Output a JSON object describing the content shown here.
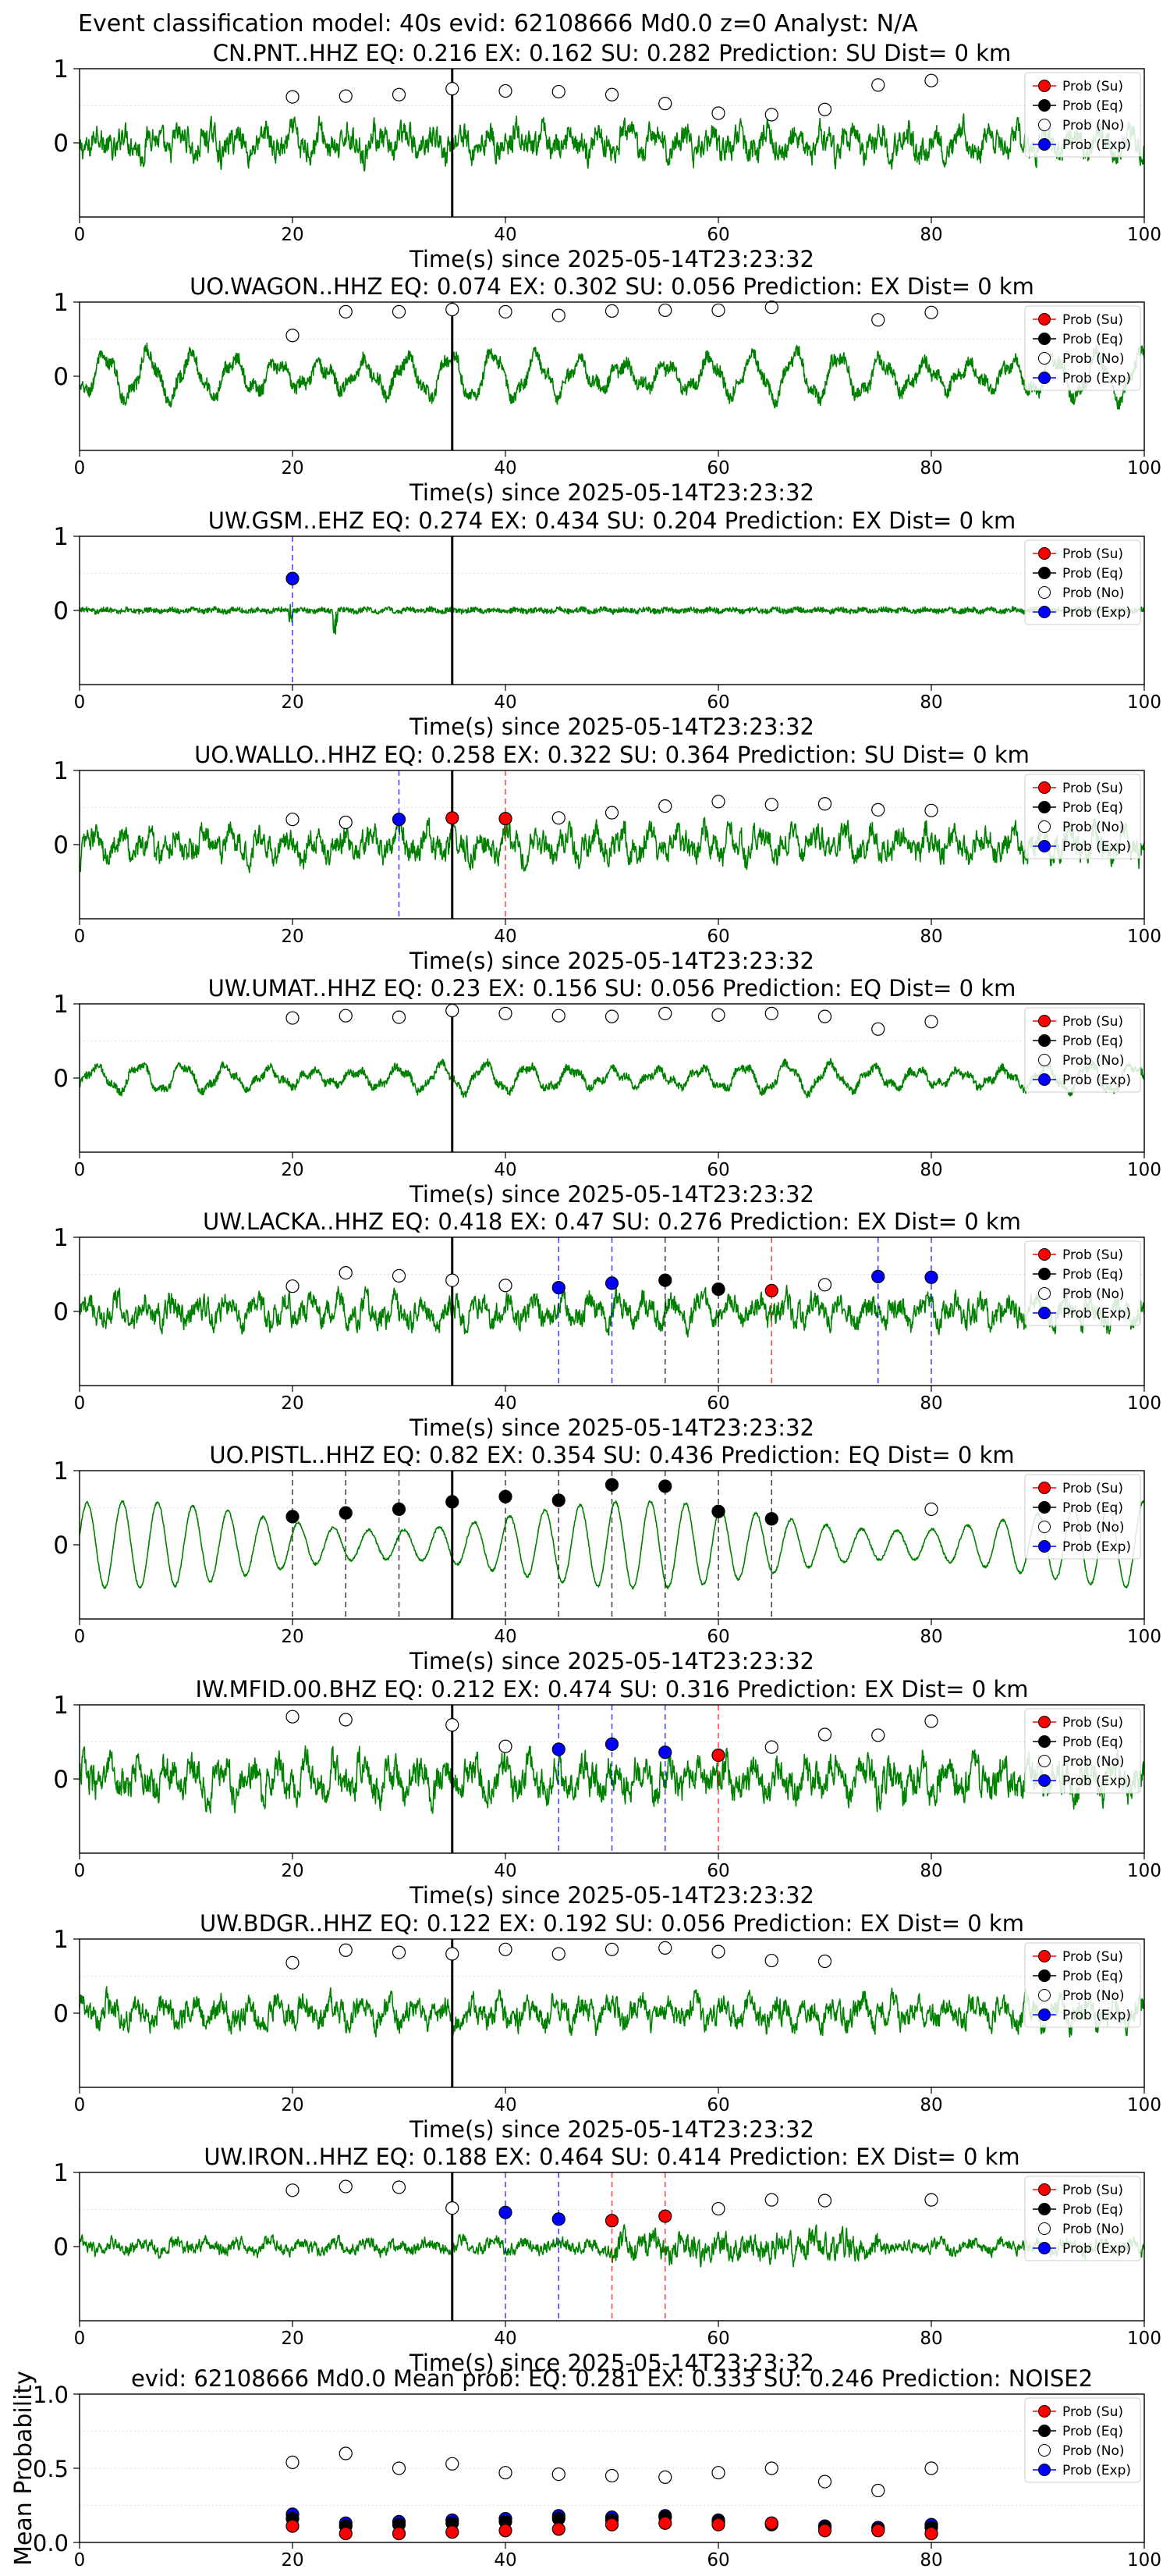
{
  "suptitle": "Event classification model: 40s evid: 62108666 Md0.0 z=0 Analyst: N/A",
  "colors": {
    "trace": "#008000",
    "su": "#ff0000",
    "eq": "#000000",
    "no": "#ffffff",
    "exp": "#0000ff",
    "origin_line": "#000000"
  },
  "legend": [
    "Prob (Su)",
    "Prob (Eq)",
    "Prob (No)",
    "Prob (Exp)"
  ],
  "chart_data": [
    {
      "type": "line",
      "station": "CN.PNT..HHZ",
      "title": "CN.PNT..HHZ   EQ: 0.216  EX: 0.162  SU: 0.282   Prediction: SU    Dist= 0 km",
      "xlabel": "Time(s) since 2025-05-14T23:23:32",
      "xlim": [
        0,
        100
      ],
      "ylim": [
        -1,
        1
      ],
      "xticks": [
        "0",
        "20",
        "40",
        "60",
        "80",
        "100"
      ],
      "yticks": [
        "0",
        "1"
      ],
      "origin_time": 35,
      "trace_style": "noisy",
      "trace_amp": 0.5,
      "no_points": [
        [
          20,
          0.62
        ],
        [
          25,
          0.63
        ],
        [
          30,
          0.65
        ],
        [
          35,
          0.73
        ],
        [
          40,
          0.7
        ],
        [
          45,
          0.69
        ],
        [
          50,
          0.65
        ],
        [
          55,
          0.53
        ],
        [
          60,
          0.4
        ],
        [
          65,
          0.38
        ],
        [
          70,
          0.45
        ],
        [
          75,
          0.78
        ],
        [
          80,
          0.84
        ]
      ],
      "class_points": []
    },
    {
      "type": "line",
      "station": "UO.WAGON..HHZ",
      "title": "UO.WAGON..HHZ   EQ: 0.074  EX: 0.302  SU: 0.056   Prediction: EX    Dist= 0 km",
      "xlabel": "Time(s) since 2025-05-14T23:23:32",
      "xlim": [
        0,
        100
      ],
      "ylim": [
        -1,
        1
      ],
      "xticks": [
        "0",
        "20",
        "40",
        "60",
        "80",
        "100"
      ],
      "yticks": [
        "0",
        "1"
      ],
      "origin_time": 35,
      "trace_style": "oscillating",
      "trace_amp": 0.5,
      "no_points": [
        [
          20,
          0.55
        ],
        [
          25,
          0.87
        ],
        [
          30,
          0.87
        ],
        [
          35,
          0.9
        ],
        [
          40,
          0.87
        ],
        [
          45,
          0.82
        ],
        [
          50,
          0.88
        ],
        [
          55,
          0.89
        ],
        [
          60,
          0.89
        ],
        [
          65,
          0.93
        ],
        [
          75,
          0.76
        ],
        [
          80,
          0.86
        ]
      ],
      "class_points": []
    },
    {
      "type": "line",
      "station": "UW.GSM..EHZ",
      "title": "UW.GSM..EHZ   EQ: 0.274  EX: 0.434  SU: 0.204   Prediction: EX    Dist= 0 km",
      "xlabel": "Time(s) since 2025-05-14T23:23:32",
      "xlim": [
        0,
        100
      ],
      "ylim": [
        -1,
        1
      ],
      "xticks": [
        "0",
        "20",
        "40",
        "60",
        "80",
        "100"
      ],
      "yticks": [
        "0",
        "1"
      ],
      "origin_time": 35,
      "trace_style": "quiet",
      "trace_amp": 0.08,
      "no_points": [],
      "class_points": [
        {
          "t": 20,
          "p": 0.43,
          "cls": "exp"
        }
      ]
    },
    {
      "type": "line",
      "station": "UO.WALLO..HHZ",
      "title": "UO.WALLO..HHZ   EQ: 0.258  EX: 0.322  SU: 0.364   Prediction: SU    Dist= 0 km",
      "xlabel": "Time(s) since 2025-05-14T23:23:32",
      "xlim": [
        0,
        100
      ],
      "ylim": [
        -1,
        1
      ],
      "xticks": [
        "0",
        "20",
        "40",
        "60",
        "80",
        "100"
      ],
      "yticks": [
        "0",
        "1"
      ],
      "origin_time": 35,
      "trace_style": "noisy",
      "trace_amp": 0.5,
      "no_points": [
        [
          20,
          0.34
        ],
        [
          25,
          0.3
        ],
        [
          45,
          0.36
        ],
        [
          50,
          0.43
        ],
        [
          55,
          0.52
        ],
        [
          60,
          0.58
        ],
        [
          65,
          0.54
        ],
        [
          70,
          0.55
        ],
        [
          75,
          0.47
        ],
        [
          80,
          0.46
        ]
      ],
      "class_points": [
        {
          "t": 30,
          "p": 0.34,
          "cls": "exp"
        },
        {
          "t": 35,
          "p": 0.36,
          "cls": "su"
        },
        {
          "t": 40,
          "p": 0.35,
          "cls": "su"
        }
      ]
    },
    {
      "type": "line",
      "station": "UW.UMAT..HHZ",
      "title": "UW.UMAT..HHZ   EQ: 0.23  EX: 0.156  SU: 0.056   Prediction: EQ    Dist= 0 km",
      "xlabel": "Time(s) since 2025-05-14T23:23:32",
      "xlim": [
        0,
        100
      ],
      "ylim": [
        -1,
        1
      ],
      "xticks": [
        "0",
        "20",
        "40",
        "60",
        "80",
        "100"
      ],
      "yticks": [
        "0",
        "1"
      ],
      "origin_time": 35,
      "trace_style": "oscillating",
      "trace_amp": 0.3,
      "no_points": [
        [
          20,
          0.81
        ],
        [
          25,
          0.84
        ],
        [
          30,
          0.82
        ],
        [
          35,
          0.91
        ],
        [
          40,
          0.87
        ],
        [
          45,
          0.84
        ],
        [
          50,
          0.83
        ],
        [
          55,
          0.87
        ],
        [
          60,
          0.85
        ],
        [
          65,
          0.87
        ],
        [
          70,
          0.83
        ],
        [
          75,
          0.66
        ],
        [
          80,
          0.76
        ]
      ],
      "class_points": []
    },
    {
      "type": "line",
      "station": "UW.LACKA..HHZ",
      "title": "UW.LACKA..HHZ   EQ: 0.418  EX: 0.47  SU: 0.276   Prediction: EX    Dist= 0 km",
      "xlabel": "Time(s) since 2025-05-14T23:23:32",
      "xlim": [
        0,
        100
      ],
      "ylim": [
        -1,
        1
      ],
      "xticks": [
        "0",
        "20",
        "40",
        "60",
        "80",
        "100"
      ],
      "yticks": [
        "0",
        "1"
      ],
      "origin_time": 35,
      "trace_style": "noisy",
      "trace_amp": 0.45,
      "no_points": [
        [
          20,
          0.34
        ],
        [
          25,
          0.52
        ],
        [
          30,
          0.48
        ],
        [
          35,
          0.42
        ],
        [
          40,
          0.35
        ],
        [
          70,
          0.36
        ]
      ],
      "class_points": [
        {
          "t": 45,
          "p": 0.32,
          "cls": "exp"
        },
        {
          "t": 50,
          "p": 0.38,
          "cls": "exp"
        },
        {
          "t": 55,
          "p": 0.42,
          "cls": "eq"
        },
        {
          "t": 60,
          "p": 0.3,
          "cls": "eq"
        },
        {
          "t": 65,
          "p": 0.28,
          "cls": "su"
        },
        {
          "t": 75,
          "p": 0.47,
          "cls": "exp"
        },
        {
          "t": 80,
          "p": 0.46,
          "cls": "exp"
        }
      ]
    },
    {
      "type": "line",
      "station": "UO.PISTL..HHZ",
      "title": "UO.PISTL..HHZ   EQ: 0.82  EX: 0.354  SU: 0.436   Prediction: EQ    Dist= 0 km",
      "xlabel": "Time(s) since 2025-05-14T23:23:32",
      "xlim": [
        0,
        100
      ],
      "ylim": [
        -1,
        1
      ],
      "xticks": [
        "0",
        "20",
        "40",
        "60",
        "80",
        "100"
      ],
      "yticks": [
        "0",
        "1"
      ],
      "origin_time": 35,
      "trace_style": "smooth",
      "trace_amp": 0.7,
      "no_points": [
        [
          80,
          0.48
        ]
      ],
      "class_points": [
        {
          "t": 20,
          "p": 0.38,
          "cls": "eq"
        },
        {
          "t": 25,
          "p": 0.43,
          "cls": "eq"
        },
        {
          "t": 30,
          "p": 0.48,
          "cls": "eq"
        },
        {
          "t": 35,
          "p": 0.58,
          "cls": "eq"
        },
        {
          "t": 40,
          "p": 0.65,
          "cls": "eq"
        },
        {
          "t": 45,
          "p": 0.6,
          "cls": "eq"
        },
        {
          "t": 50,
          "p": 0.81,
          "cls": "eq"
        },
        {
          "t": 55,
          "p": 0.79,
          "cls": "eq"
        },
        {
          "t": 60,
          "p": 0.45,
          "cls": "eq"
        },
        {
          "t": 65,
          "p": 0.35,
          "cls": "eq"
        }
      ]
    },
    {
      "type": "line",
      "station": "IW.MFID.00.BHZ",
      "title": "IW.MFID.00.BHZ   EQ: 0.212  EX: 0.474  SU: 0.316   Prediction: EX    Dist= 0 km",
      "xlabel": "Time(s) since 2025-05-14T23:23:32",
      "xlim": [
        0,
        100
      ],
      "ylim": [
        -1,
        1
      ],
      "xticks": [
        "0",
        "20",
        "40",
        "60",
        "80",
        "100"
      ],
      "yticks": [
        "0",
        "1"
      ],
      "origin_time": 35,
      "trace_style": "noisy",
      "trace_amp": 0.6,
      "no_points": [
        [
          20,
          0.84
        ],
        [
          25,
          0.8
        ],
        [
          35,
          0.73
        ],
        [
          40,
          0.44
        ],
        [
          65,
          0.43
        ],
        [
          70,
          0.6
        ],
        [
          75,
          0.59
        ],
        [
          80,
          0.78
        ]
      ],
      "class_points": [
        {
          "t": 45,
          "p": 0.4,
          "cls": "exp"
        },
        {
          "t": 50,
          "p": 0.47,
          "cls": "exp"
        },
        {
          "t": 55,
          "p": 0.36,
          "cls": "exp"
        },
        {
          "t": 60,
          "p": 0.32,
          "cls": "su"
        }
      ]
    },
    {
      "type": "line",
      "station": "UW.BDGR..HHZ",
      "title": "UW.BDGR..HHZ   EQ: 0.122  EX: 0.192  SU: 0.056   Prediction: EX    Dist= 0 km",
      "xlabel": "Time(s) since 2025-05-14T23:23:32",
      "xlim": [
        0,
        100
      ],
      "ylim": [
        -1,
        1
      ],
      "xticks": [
        "0",
        "20",
        "40",
        "60",
        "80",
        "100"
      ],
      "yticks": [
        "0",
        "1"
      ],
      "origin_time": 35,
      "trace_style": "noisy",
      "trace_amp": 0.45,
      "no_points": [
        [
          20,
          0.68
        ],
        [
          25,
          0.85
        ],
        [
          30,
          0.82
        ],
        [
          35,
          0.8
        ],
        [
          40,
          0.86
        ],
        [
          45,
          0.8
        ],
        [
          50,
          0.86
        ],
        [
          55,
          0.88
        ],
        [
          60,
          0.83
        ],
        [
          65,
          0.71
        ],
        [
          70,
          0.7
        ]
      ],
      "class_points": []
    },
    {
      "type": "line",
      "station": "UW.IRON..HHZ",
      "title": "UW.IRON..HHZ   EQ: 0.188  EX: 0.464  SU: 0.414   Prediction: EX    Dist= 0 km",
      "xlabel": "Time(s) since 2025-05-14T23:23:32",
      "xlim": [
        0,
        100
      ],
      "ylim": [
        -1,
        1
      ],
      "xticks": [
        "0",
        "20",
        "40",
        "60",
        "80",
        "100"
      ],
      "yticks": [
        "0",
        "1"
      ],
      "origin_time": 35,
      "trace_style": "mixed",
      "trace_amp": 0.3,
      "no_points": [
        [
          20,
          0.76
        ],
        [
          25,
          0.81
        ],
        [
          30,
          0.8
        ],
        [
          35,
          0.52
        ],
        [
          60,
          0.51
        ],
        [
          65,
          0.63
        ],
        [
          70,
          0.62
        ],
        [
          80,
          0.63
        ]
      ],
      "class_points": [
        {
          "t": 40,
          "p": 0.46,
          "cls": "exp"
        },
        {
          "t": 45,
          "p": 0.37,
          "cls": "exp"
        },
        {
          "t": 50,
          "p": 0.35,
          "cls": "su"
        },
        {
          "t": 55,
          "p": 0.41,
          "cls": "su"
        }
      ]
    },
    {
      "type": "scatter",
      "station": "mean",
      "title": "evid: 62108666  Md0.0   Mean prob:   EQ: 0.281  EX: 0.333  SU: 0.246   Prediction: NOISE2",
      "xlabel": "",
      "ylabel": "Mean Probability",
      "xlim": [
        0,
        100
      ],
      "ylim": [
        0,
        1
      ],
      "xticks": [
        "0",
        "20",
        "40",
        "60",
        "80",
        "100"
      ],
      "yticks": [
        "0.0",
        "0.5",
        "1.0"
      ],
      "x": [
        20,
        25,
        30,
        35,
        40,
        45,
        50,
        55,
        60,
        65,
        70,
        75,
        80
      ],
      "series": [
        {
          "name": "Prob (No)",
          "cls": "no",
          "values": [
            0.54,
            0.6,
            0.5,
            0.53,
            0.47,
            0.46,
            0.45,
            0.44,
            0.47,
            0.5,
            0.41,
            0.35,
            0.5
          ]
        },
        {
          "name": "Prob (Exp)",
          "cls": "exp",
          "values": [
            0.19,
            0.13,
            0.14,
            0.15,
            0.16,
            0.18,
            0.17,
            0.18,
            0.15,
            0.13,
            0.11,
            0.1,
            0.12
          ]
        },
        {
          "name": "Prob (Eq)",
          "cls": "eq",
          "values": [
            0.16,
            0.11,
            0.12,
            0.13,
            0.14,
            0.16,
            0.15,
            0.17,
            0.14,
            0.12,
            0.1,
            0.09,
            0.1
          ]
        },
        {
          "name": "Prob (Su)",
          "cls": "su",
          "values": [
            0.11,
            0.06,
            0.06,
            0.07,
            0.08,
            0.09,
            0.12,
            0.13,
            0.12,
            0.13,
            0.08,
            0.08,
            0.06
          ]
        }
      ]
    }
  ]
}
